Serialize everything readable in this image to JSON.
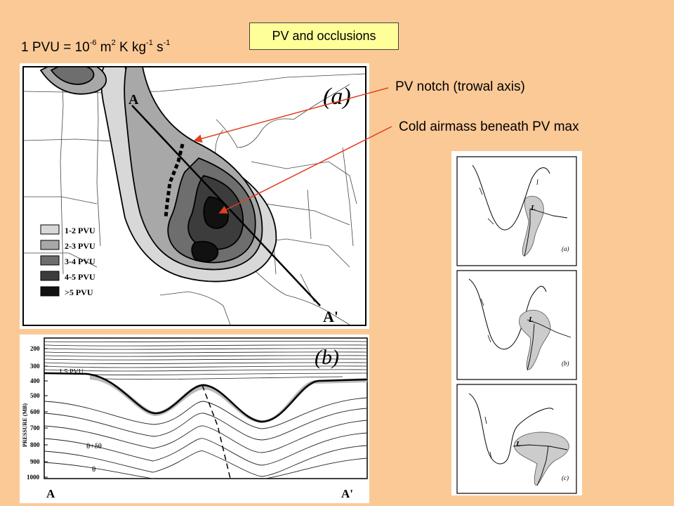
{
  "title": "PV and occlusions",
  "unit": {
    "base": "1 PVU = 10",
    "e1": "-6",
    "m": " m",
    "e2": "2",
    "kkg": " K kg",
    "e3": "-1",
    "s": " s",
    "e4": "-1"
  },
  "callouts": {
    "notch": "PV notch (trowal axis)",
    "cold": "Cold airmass beneath PV max"
  },
  "panel_a": {
    "label": "(a)",
    "point_a": "A",
    "point_a_prime": "A'",
    "legend": [
      {
        "label": "1-2 PVU",
        "color": "#d8d8d8"
      },
      {
        "label": "2-3 PVU",
        "color": "#a8a8a8"
      },
      {
        "label": "3-4 PVU",
        "color": "#6e6e6e"
      },
      {
        "label": "4-5 PVU",
        "color": "#3c3c3c"
      },
      {
        "label": ">5  PVU",
        "color": "#111111"
      }
    ]
  },
  "panel_b": {
    "label": "(b)",
    "ylabel": "PRESSURE (MB)",
    "yticks": [
      "200",
      "300",
      "400",
      "500",
      "600",
      "700",
      "800",
      "900",
      "1000"
    ],
    "contour_label": "1.5 PVU",
    "theta_label": "θ",
    "theta_d_label": "θ+δθ",
    "x_start": "A",
    "x_end": "A'"
  },
  "panel_right": {
    "labels": [
      "(a)",
      "(b)",
      "(c)"
    ],
    "low": "L"
  }
}
